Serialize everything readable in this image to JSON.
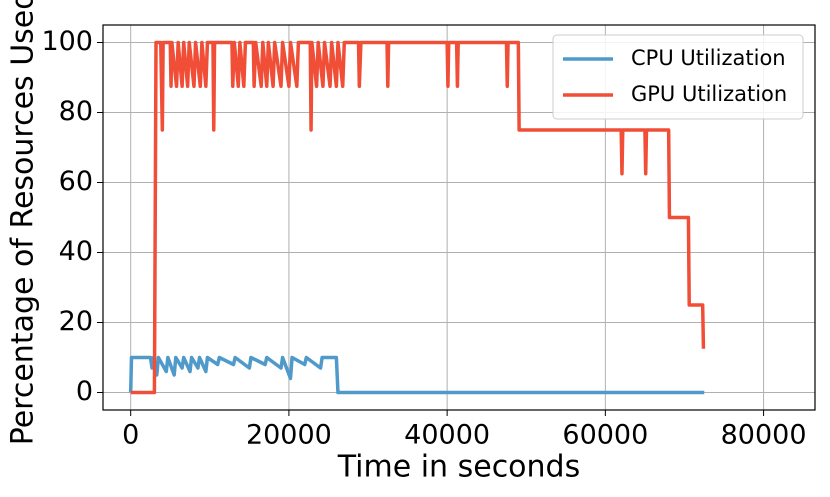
{
  "chart_data": {
    "type": "line",
    "xlabel": "Time in seconds",
    "ylabel": "Percentage of Resources Used",
    "xlim": [
      -3500,
      86500
    ],
    "xticks": [
      0,
      20000,
      40000,
      60000,
      80000
    ],
    "ylim": [
      -5,
      105
    ],
    "yticks": [
      0,
      20,
      40,
      60,
      80,
      100
    ],
    "grid": true,
    "legend": "upper right",
    "series": [
      {
        "name": "CPU Utilization",
        "color": "#4f9acb",
        "x": [
          0,
          100,
          2500,
          2700,
          2900,
          3300,
          3500,
          4500,
          4700,
          5500,
          5700,
          6500,
          6700,
          7500,
          7700,
          8500,
          8700,
          9500,
          9700,
          11000,
          11200,
          13000,
          13200,
          15000,
          15200,
          17000,
          17200,
          19000,
          19200,
          20200,
          20400,
          22000,
          22200,
          24000,
          24200,
          26000,
          26200,
          72500
        ],
        "values": [
          0,
          10,
          10,
          7,
          10,
          5,
          10,
          6,
          10,
          5,
          10,
          7,
          10,
          6,
          10,
          7,
          10,
          6,
          10,
          8,
          10,
          8,
          10,
          7,
          10,
          8,
          10,
          7,
          10,
          4,
          10,
          8,
          10,
          7,
          10,
          10,
          0,
          0
        ]
      },
      {
        "name": "GPU Utilization",
        "color": "#f04e37",
        "x": [
          0,
          3000,
          3200,
          3800,
          3900,
          4000,
          4100,
          5000,
          5100,
          5200,
          5800,
          6000,
          6500,
          6700,
          7200,
          7400,
          8000,
          8200,
          8800,
          9000,
          9500,
          9700,
          10400,
          10500,
          10600,
          12800,
          12900,
          13100,
          13600,
          13800,
          14300,
          14500,
          15500,
          15600,
          15800,
          16500,
          16700,
          17200,
          17400,
          18000,
          18200,
          19000,
          19200,
          20000,
          20200,
          21000,
          21200,
          22700,
          22800,
          22900,
          23500,
          23700,
          24300,
          24500,
          25200,
          25400,
          26000,
          26200,
          26800,
          27000,
          28800,
          28900,
          29100,
          32400,
          32500,
          32600,
          40000,
          40100,
          40200,
          41200,
          41300,
          41400,
          47500,
          47600,
          47700,
          49000,
          49100,
          62000,
          62100,
          62200,
          65000,
          65100,
          65200,
          68000,
          68100,
          70500,
          70600,
          72300,
          72400
        ],
        "values": [
          0,
          0,
          100,
          100,
          87.5,
          75,
          100,
          100,
          87.5,
          100,
          87.5,
          100,
          87.5,
          100,
          87.5,
          100,
          87.5,
          100,
          87.5,
          100,
          87.5,
          100,
          100,
          75,
          100,
          100,
          87.5,
          100,
          87.5,
          100,
          87.5,
          100,
          100,
          87.5,
          100,
          87.5,
          100,
          87.5,
          100,
          87.5,
          100,
          87.5,
          100,
          87.5,
          100,
          87.5,
          100,
          100,
          75,
          100,
          87.5,
          100,
          87.5,
          100,
          87.5,
          100,
          87.5,
          100,
          87.5,
          100,
          100,
          87.5,
          100,
          100,
          87.5,
          100,
          100,
          87.5,
          100,
          100,
          87.5,
          100,
          100,
          87.5,
          100,
          100,
          75,
          75,
          62.5,
          75,
          75,
          62.5,
          75,
          75,
          50,
          50,
          25,
          25,
          12.5
        ]
      }
    ]
  }
}
